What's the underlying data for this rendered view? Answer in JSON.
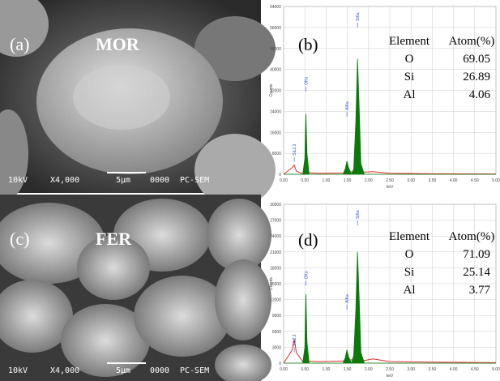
{
  "panels": [
    {
      "label": "(a)",
      "sample": "MOR",
      "footer": [
        "10kV",
        "X4,000",
        "5μm",
        "0000",
        "PC-SEM"
      ]
    },
    {
      "label": "(c)",
      "sample": "FER",
      "footer": [
        "10kV",
        "X4,000",
        "5μm",
        "0000",
        "PC-SEM"
      ]
    }
  ],
  "chart_data": [
    {
      "type": "area",
      "panel": "(b)",
      "xlabel": "keV",
      "ylabel": "Counts",
      "x": [
        0,
        0.2,
        0.25,
        0.3,
        0.45,
        0.5,
        0.525,
        0.55,
        0.6,
        0.8,
        1.4,
        1.45,
        1.49,
        1.53,
        1.6,
        1.65,
        1.7,
        1.74,
        1.78,
        1.82,
        1.9,
        2.1,
        2.5,
        3.5,
        5.0
      ],
      "series": [
        {
          "color": "#e03030",
          "values": [
            0,
            2500,
            3500,
            1200,
            200,
            800,
            2000,
            1000,
            600,
            400,
            500,
            800,
            1200,
            1000,
            900,
            1200,
            3000,
            4000,
            3000,
            1500,
            800,
            1000,
            400,
            200,
            100
          ]
        },
        {
          "color": "#0a7a0a",
          "values": [
            0,
            0,
            0,
            0,
            0,
            6000,
            23000,
            8000,
            0,
            0,
            0,
            2000,
            5000,
            2500,
            0,
            2000,
            20000,
            44000,
            25000,
            4000,
            0,
            0,
            0,
            0,
            0
          ]
        }
      ],
      "xlim": [
        0,
        5
      ],
      "ylim": [
        0,
        64000
      ],
      "xticks": [
        {
          "value": 0,
          "label": "0.00"
        },
        {
          "value": 0.5,
          "label": "0.50"
        },
        {
          "value": 1,
          "label": "1.00"
        },
        {
          "value": 1.5,
          "label": "1.50"
        },
        {
          "value": 2,
          "label": "2.00"
        },
        {
          "value": 2.5,
          "label": "2.50"
        },
        {
          "value": 3,
          "label": "3.00"
        },
        {
          "value": 3.5,
          "label": "3.50"
        },
        {
          "value": 4,
          "label": "4.00"
        },
        {
          "value": 4.5,
          "label": "4.50"
        },
        {
          "value": 5,
          "label": "5.00"
        }
      ],
      "yticks": [
        0,
        8000,
        16000,
        24000,
        32000,
        40000,
        48000,
        56000,
        64000
      ],
      "grid": true,
      "annotations": [
        {
          "label": "SiL2,3",
          "x": 0.25
        },
        {
          "label": "OKa",
          "x": 0.525
        },
        {
          "label": "AlKa",
          "x": 1.49
        },
        {
          "label": "SiKa",
          "x": 1.74
        }
      ],
      "table": {
        "header": [
          "Element",
          "Atom(%)"
        ],
        "rows": [
          [
            "O",
            69.05
          ],
          [
            "Si",
            26.89
          ],
          [
            "Al",
            4.06
          ]
        ]
      }
    },
    {
      "type": "area",
      "panel": "(d)",
      "xlabel": "keV",
      "ylabel": "Counts",
      "x": [
        0,
        0.2,
        0.25,
        0.3,
        0.45,
        0.5,
        0.525,
        0.55,
        0.6,
        0.8,
        1.4,
        1.45,
        1.49,
        1.53,
        1.6,
        1.65,
        1.7,
        1.74,
        1.78,
        1.82,
        1.9,
        2.1,
        2.5,
        3.5,
        5.0
      ],
      "series": [
        {
          "color": "#e03030",
          "values": [
            0,
            2500,
            4500,
            2000,
            300,
            600,
            1200,
            600,
            400,
            300,
            400,
            600,
            900,
            700,
            600,
            800,
            1500,
            2000,
            1500,
            900,
            500,
            800,
            300,
            200,
            100
          ]
        },
        {
          "color": "#0a7a0a",
          "values": [
            0,
            0,
            0,
            0,
            0,
            3000,
            13000,
            4000,
            0,
            0,
            0,
            1000,
            2500,
            1200,
            0,
            1500,
            10000,
            21000,
            12000,
            2000,
            0,
            0,
            0,
            0,
            0
          ]
        }
      ],
      "xlim": [
        0,
        5
      ],
      "ylim": [
        0,
        30000
      ],
      "xticks": [
        {
          "value": 0,
          "label": "0.00"
        },
        {
          "value": 0.5,
          "label": "0.50"
        },
        {
          "value": 1,
          "label": "1.00"
        },
        {
          "value": 1.5,
          "label": "1.50"
        },
        {
          "value": 2,
          "label": "2.00"
        },
        {
          "value": 2.5,
          "label": "2.50"
        },
        {
          "value": 3,
          "label": "3.00"
        },
        {
          "value": 3.5,
          "label": "3.50"
        },
        {
          "value": 4,
          "label": "4.00"
        },
        {
          "value": 4.5,
          "label": "4.50"
        },
        {
          "value": 5,
          "label": "5.00"
        }
      ],
      "yticks": [
        0,
        3000,
        6000,
        9000,
        12000,
        15000,
        18000,
        21000,
        24000,
        27000,
        30000
      ],
      "grid": true,
      "annotations": [
        {
          "label": "SiL2,3",
          "x": 0.25
        },
        {
          "label": "OKa",
          "x": 0.525
        },
        {
          "label": "AlKa",
          "x": 1.49
        },
        {
          "label": "SiKa",
          "x": 1.74
        }
      ],
      "table": {
        "header": [
          "Element",
          "Atom(%)"
        ],
        "rows": [
          [
            "O",
            71.09
          ],
          [
            "Si",
            25.14
          ],
          [
            "Al",
            3.77
          ]
        ]
      }
    }
  ]
}
